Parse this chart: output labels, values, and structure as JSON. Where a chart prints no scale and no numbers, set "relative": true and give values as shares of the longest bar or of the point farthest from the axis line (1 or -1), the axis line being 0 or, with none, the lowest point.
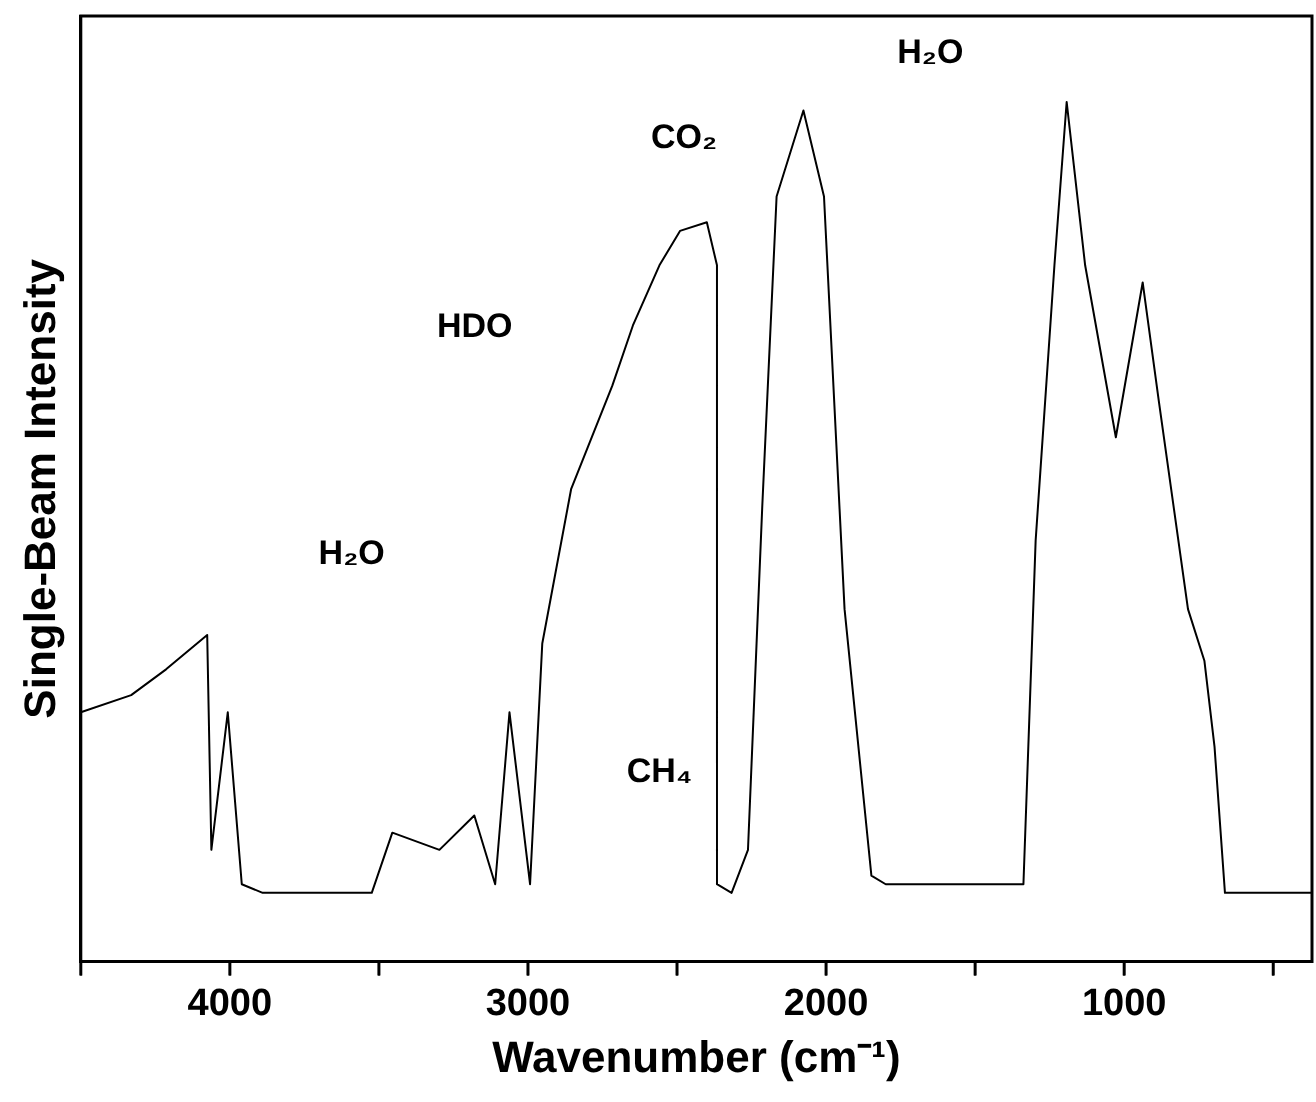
{
  "chart_data": {
    "type": "line",
    "relative": true,
    "xlabel": "Wavenumber (cm⁻¹)",
    "ylabel": "Single-Beam Intensity",
    "x": [
      4500,
      4331,
      4214,
      4076,
      4062,
      4007,
      3960,
      3890,
      3524,
      3455,
      3297,
      3180,
      3110,
      3062,
      2993,
      2952,
      2855,
      2717,
      2648,
      2559,
      2490,
      2400,
      2366,
      2366,
      2317,
      2262,
      2214,
      2166,
      2076,
      2007,
      1938,
      1848,
      1800,
      1338,
      1297,
      1234,
      1193,
      1131,
      1028,
      938,
      883,
      786,
      731,
      697,
      662,
      370
    ],
    "series": [
      {
        "color": "#000000",
        "values": [
          0.29,
          0.31,
          0.34,
          0.38,
          0.13,
          0.29,
          0.09,
          0.08,
          0.08,
          0.15,
          0.13,
          0.17,
          0.09,
          0.29,
          0.09,
          0.37,
          0.55,
          0.67,
          0.74,
          0.81,
          0.85,
          0.86,
          0.81,
          0.09,
          0.08,
          0.13,
          0.53,
          0.89,
          0.99,
          0.89,
          0.41,
          0.1,
          0.09,
          0.09,
          0.49,
          0.81,
          1.0,
          0.81,
          0.61,
          0.79,
          0.65,
          0.41,
          0.35,
          0.25,
          0.08,
          0.08
        ]
      }
    ],
    "xlim": [
      4500,
      370
    ],
    "xticks": [
      {
        "value": 4500,
        "label": null
      },
      4000,
      {
        "value": 3500,
        "label": null
      },
      3000,
      {
        "value": 2500,
        "label": null
      },
      2000,
      {
        "value": 1500,
        "label": null
      },
      1000,
      {
        "value": 500,
        "label": null
      }
    ],
    "grid": false,
    "legend": false,
    "marker": "none",
    "line_style": "solid",
    "annotations": [
      "H₂O",
      "HDO",
      "CH₄",
      "CO₂",
      "H₂O"
    ]
  }
}
